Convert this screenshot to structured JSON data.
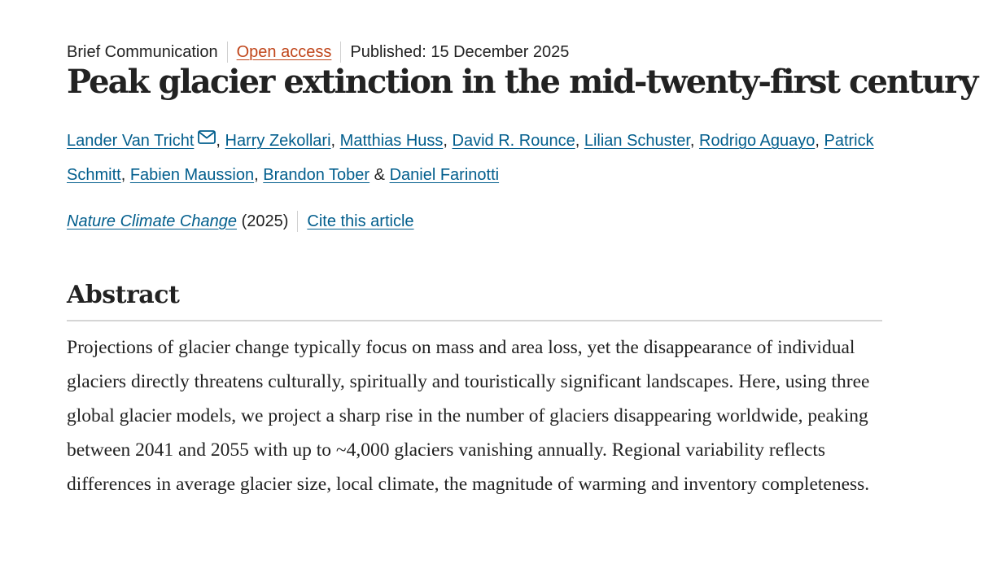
{
  "meta": {
    "type": "Brief Communication",
    "access": "Open access",
    "published": "Published: 15 December 2025"
  },
  "title": "Peak glacier extinction in the mid-twenty-first century",
  "authors": [
    "Lander Van Tricht",
    "Harry Zekollari",
    "Matthias Huss",
    "David R. Rounce",
    "Lilian Schuster",
    "Rodrigo Aguayo",
    "Patrick Schmitt",
    "Fabien Maussion",
    "Brandon Tober",
    "Daniel Farinotti"
  ],
  "author_separators": {
    "comma": ",",
    "and": "&"
  },
  "citation": {
    "journal": "Nature Climate Change",
    "year": "(2025)",
    "cite_link": "Cite this article"
  },
  "abstract": {
    "heading": "Abstract",
    "text": "Projections of glacier change typically focus on mass and area loss, yet the disappearance of individual glaciers directly threatens culturally, spiritually and touristically significant landscapes. Here, using three global glacier models, we project a sharp rise in the number of glaciers disappearing worldwide, peaking between 2041 and 2055 with up to ~4,000 glaciers vanishing annually. Regional variability reflects differences in average glacier size, local climate, the magnitude of warming and inventory completeness."
  },
  "icons": {
    "email": "mail-icon"
  },
  "colors": {
    "link": "#025e8d",
    "open_access": "#c0451a",
    "text": "#222222",
    "rule": "#d5d5d5"
  }
}
